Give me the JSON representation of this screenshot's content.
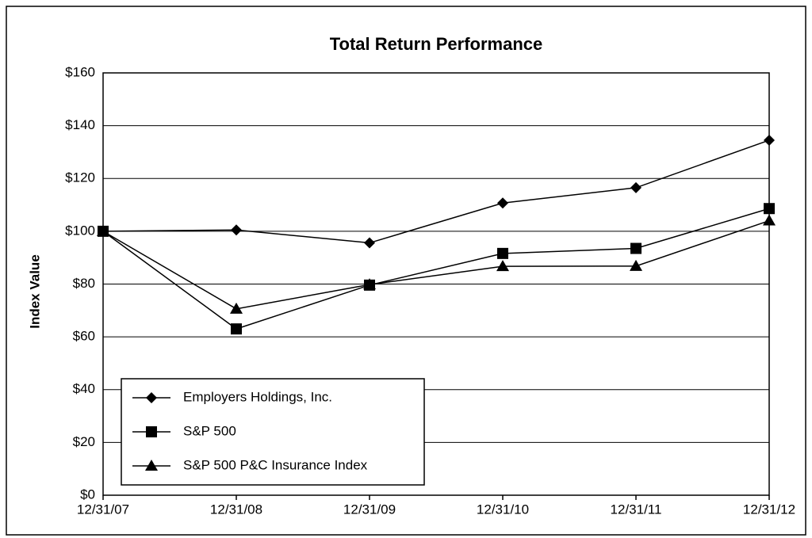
{
  "chart_data": {
    "type": "line",
    "title": "Total Return Performance",
    "y_label": "Index Value",
    "categories": [
      "12/31/07",
      "12/31/08",
      "12/31/09",
      "12/31/10",
      "12/31/11",
      "12/31/12"
    ],
    "series": [
      {
        "name": "Employers Holdings, Inc.",
        "color": "#000000",
        "marker": "diamond",
        "values": [
          100,
          100.5,
          95.6,
          110.7,
          116.5,
          134.5
        ]
      },
      {
        "name": "S&P 500",
        "color": "#000000",
        "marker": "square",
        "values": [
          100,
          63,
          79.6,
          91.6,
          93.5,
          108.6
        ]
      },
      {
        "name": "S&P 500 P&C Insurance Index",
        "color": "#000000",
        "marker": "triangle",
        "values": [
          100,
          70.6,
          79.8,
          86.7,
          86.8,
          104
        ]
      }
    ],
    "ylim": [
      0,
      160
    ],
    "yticks": [
      {
        "value": 0,
        "label": "$0"
      },
      {
        "value": 20,
        "label": "$20"
      },
      {
        "value": 40,
        "label": "$40"
      },
      {
        "value": 60,
        "label": "$60"
      },
      {
        "value": 80,
        "label": "$80"
      },
      {
        "value": 100,
        "label": "$100"
      },
      {
        "value": 120,
        "label": "$120"
      },
      {
        "value": 140,
        "label": "$140"
      },
      {
        "value": 160,
        "label": "$160"
      }
    ],
    "grid": true,
    "legend": "lower left"
  }
}
